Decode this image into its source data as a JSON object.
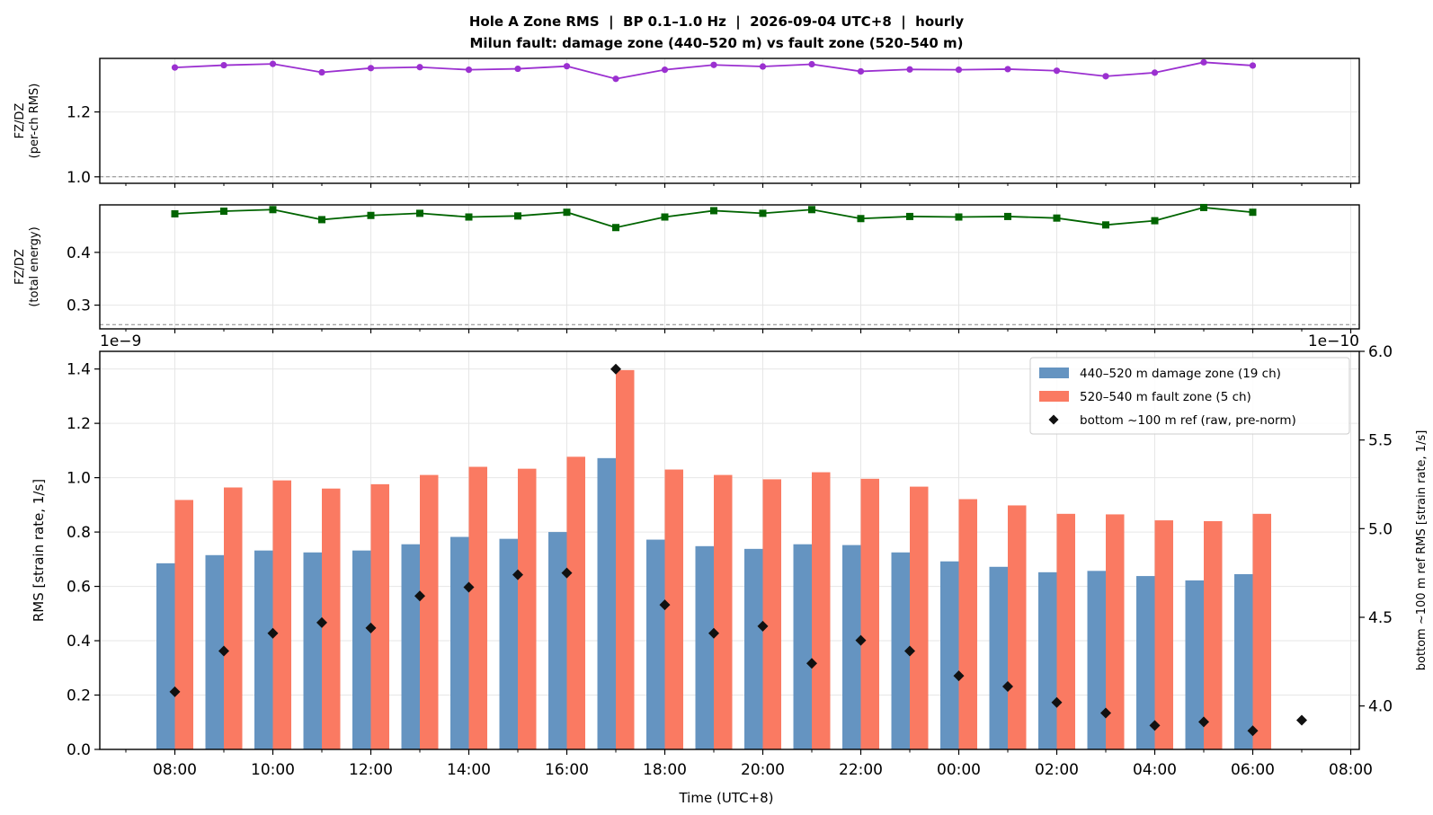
{
  "chart_data": {
    "title": "Hole A Zone RMS  |  BP 0.1–1.0 Hz  |  2026-09-04 UTC+8  |  hourly",
    "subtitle": "Milun fault: damage zone (440–520 m) vs fault zone (520–540 m)",
    "xlabel": "Time (UTC+8)",
    "x_ticks": [
      "08:00",
      "10:00",
      "12:00",
      "14:00",
      "16:00",
      "18:00",
      "20:00",
      "22:00",
      "00:00",
      "02:00",
      "04:00",
      "06:00",
      "08:00"
    ],
    "x_hours": [
      "07:00",
      "08:00",
      "09:00",
      "10:00",
      "11:00",
      "12:00",
      "13:00",
      "14:00",
      "15:00",
      "16:00",
      "17:00",
      "18:00",
      "19:00",
      "20:00",
      "21:00",
      "22:00",
      "23:00",
      "00:00",
      "01:00",
      "02:00",
      "03:00",
      "04:00",
      "05:00",
      "06:00",
      "07:00",
      "08:00"
    ],
    "charts": [
      {
        "type": "line",
        "ylabel": [
          "FZ/DZ",
          "(per-ch RMS)"
        ],
        "yticks": [
          "1.0",
          "1.2"
        ],
        "ylim": [
          0.98,
          1.365
        ],
        "reference_line": 1.0,
        "color": "#9b30d0",
        "marker": "circle",
        "values": [
          1.337,
          1.344,
          1.348,
          1.322,
          1.335,
          1.338,
          1.33,
          1.333,
          1.341,
          1.302,
          1.33,
          1.345,
          1.34,
          1.347,
          1.325,
          1.331,
          1.33,
          1.332,
          1.327,
          1.31,
          1.321,
          1.353,
          1.343
        ]
      },
      {
        "type": "line",
        "ylabel": [
          "FZ/DZ",
          "(total energy)"
        ],
        "yticks": [
          "0.3",
          "0.4"
        ],
        "ylim": [
          0.255,
          0.49
        ],
        "reference_line": 0.263,
        "color": "#006400",
        "marker": "square",
        "values": [
          0.473,
          0.478,
          0.481,
          0.462,
          0.47,
          0.474,
          0.467,
          0.469,
          0.476,
          0.447,
          0.467,
          0.479,
          0.474,
          0.481,
          0.464,
          0.468,
          0.467,
          0.468,
          0.465,
          0.452,
          0.46,
          0.485,
          0.476
        ]
      },
      {
        "type": "bar",
        "ylabel": "RMS  [strain rate, 1/s]",
        "y_scale_label": "1e−9",
        "yticks": [
          "0.0",
          "0.2",
          "0.4",
          "0.6",
          "0.8",
          "1.0",
          "1.2",
          "1.4"
        ],
        "ylim": [
          0,
          1.465
        ],
        "y2label": "bottom ~100 m ref RMS  [strain rate, 1/s]",
        "y2_scale_label": "1e−10",
        "y2ticks": [
          "4.0",
          "4.5",
          "5.0",
          "5.5",
          "6.0"
        ],
        "y2lim": [
          3.755,
          6.0
        ],
        "legend_position": "top-right",
        "series": [
          {
            "name": "440–520 m  damage zone (19 ch)",
            "color": "#6594c1",
            "values": [
              0.685,
              0.715,
              0.732,
              0.725,
              0.732,
              0.755,
              0.782,
              0.775,
              0.8,
              1.072,
              0.772,
              0.748,
              0.738,
              0.755,
              0.752,
              0.725,
              0.692,
              0.672,
              0.652,
              0.657,
              0.638,
              0.622,
              0.645
            ]
          },
          {
            "name": "520–540 m  fault zone (5 ch)",
            "color": "#fa7a62",
            "values": [
              0.918,
              0.964,
              0.99,
              0.96,
              0.976,
              1.01,
              1.04,
              1.033,
              1.077,
              1.396,
              1.03,
              1.01,
              0.994,
              1.02,
              0.996,
              0.967,
              0.921,
              0.898,
              0.867,
              0.865,
              0.843,
              0.84,
              0.867
            ]
          },
          {
            "name": "bottom ~100 m ref (raw, pre-norm)",
            "axis": "right",
            "color": "#111111",
            "marker": "diamond",
            "values": [
              4.08,
              4.31,
              4.41,
              4.47,
              4.44,
              4.62,
              4.67,
              4.74,
              4.75,
              5.9,
              4.57,
              4.41,
              4.45,
              4.24,
              4.37,
              4.31,
              4.17,
              4.11,
              4.02,
              3.96,
              3.89,
              3.91,
              3.86,
              3.92
            ]
          }
        ]
      }
    ]
  }
}
